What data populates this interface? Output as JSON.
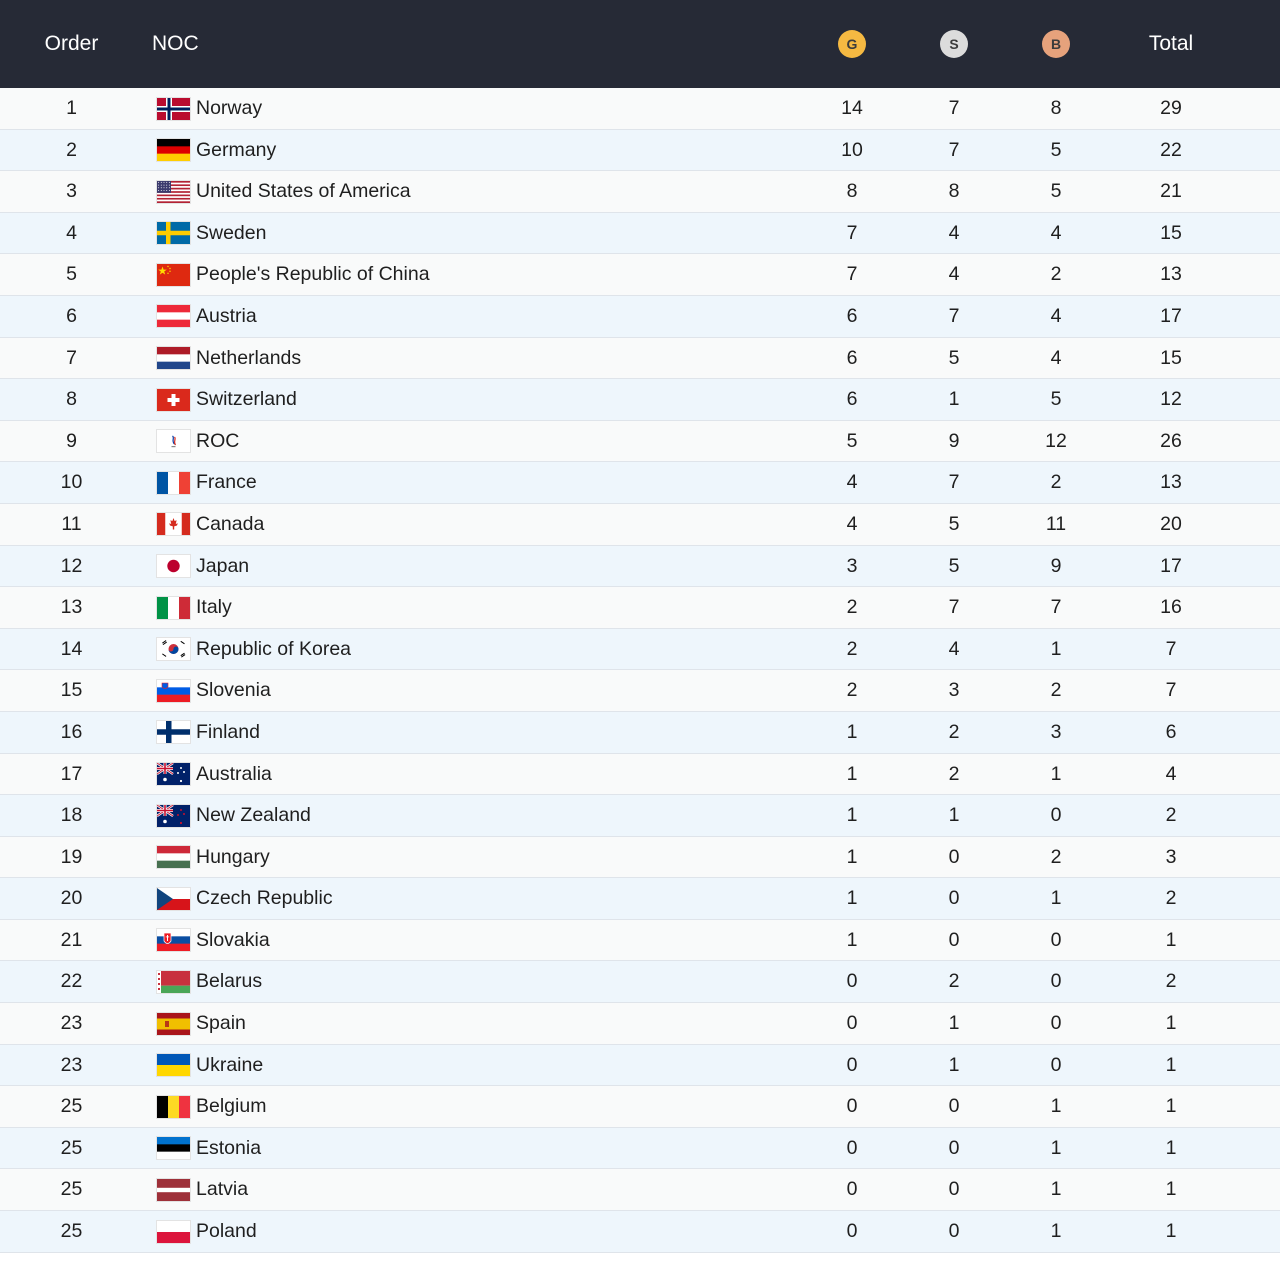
{
  "header": {
    "order": "Order",
    "noc": "NOC",
    "gold": "G",
    "silver": "S",
    "bronze": "B",
    "total": "Total"
  },
  "colors": {
    "header_bg": "#262a36",
    "gold_medal": "#f5b942",
    "silver_medal": "#dcdcdc",
    "bronze_medal": "#e6a27c",
    "row_alt": "#eef6fc"
  },
  "rows": [
    {
      "order": "1",
      "noc": "Norway",
      "flag": "norway",
      "g": "14",
      "s": "7",
      "b": "8",
      "total": "29"
    },
    {
      "order": "2",
      "noc": "Germany",
      "flag": "germany",
      "g": "10",
      "s": "7",
      "b": "5",
      "total": "22"
    },
    {
      "order": "3",
      "noc": "United States of America",
      "flag": "usa",
      "g": "8",
      "s": "8",
      "b": "5",
      "total": "21"
    },
    {
      "order": "4",
      "noc": "Sweden",
      "flag": "sweden",
      "g": "7",
      "s": "4",
      "b": "4",
      "total": "15"
    },
    {
      "order": "5",
      "noc": "People's Republic of China",
      "flag": "china",
      "g": "7",
      "s": "4",
      "b": "2",
      "total": "13"
    },
    {
      "order": "6",
      "noc": "Austria",
      "flag": "austria",
      "g": "6",
      "s": "7",
      "b": "4",
      "total": "17"
    },
    {
      "order": "7",
      "noc": "Netherlands",
      "flag": "netherlands",
      "g": "6",
      "s": "5",
      "b": "4",
      "total": "15"
    },
    {
      "order": "8",
      "noc": "Switzerland",
      "flag": "switzerland",
      "g": "6",
      "s": "1",
      "b": "5",
      "total": "12"
    },
    {
      "order": "9",
      "noc": "ROC",
      "flag": "roc",
      "g": "5",
      "s": "9",
      "b": "12",
      "total": "26"
    },
    {
      "order": "10",
      "noc": "France",
      "flag": "france",
      "g": "4",
      "s": "7",
      "b": "2",
      "total": "13"
    },
    {
      "order": "11",
      "noc": "Canada",
      "flag": "canada",
      "g": "4",
      "s": "5",
      "b": "11",
      "total": "20"
    },
    {
      "order": "12",
      "noc": "Japan",
      "flag": "japan",
      "g": "3",
      "s": "5",
      "b": "9",
      "total": "17"
    },
    {
      "order": "13",
      "noc": "Italy",
      "flag": "italy",
      "g": "2",
      "s": "7",
      "b": "7",
      "total": "16"
    },
    {
      "order": "14",
      "noc": "Republic of Korea",
      "flag": "korea",
      "g": "2",
      "s": "4",
      "b": "1",
      "total": "7"
    },
    {
      "order": "15",
      "noc": "Slovenia",
      "flag": "slovenia",
      "g": "2",
      "s": "3",
      "b": "2",
      "total": "7"
    },
    {
      "order": "16",
      "noc": "Finland",
      "flag": "finland",
      "g": "1",
      "s": "2",
      "b": "3",
      "total": "6"
    },
    {
      "order": "17",
      "noc": "Australia",
      "flag": "australia",
      "g": "1",
      "s": "2",
      "b": "1",
      "total": "4"
    },
    {
      "order": "18",
      "noc": "New Zealand",
      "flag": "newzealand",
      "g": "1",
      "s": "1",
      "b": "0",
      "total": "2"
    },
    {
      "order": "19",
      "noc": "Hungary",
      "flag": "hungary",
      "g": "1",
      "s": "0",
      "b": "2",
      "total": "3"
    },
    {
      "order": "20",
      "noc": "Czech Republic",
      "flag": "czech",
      "g": "1",
      "s": "0",
      "b": "1",
      "total": "2"
    },
    {
      "order": "21",
      "noc": "Slovakia",
      "flag": "slovakia",
      "g": "1",
      "s": "0",
      "b": "0",
      "total": "1"
    },
    {
      "order": "22",
      "noc": "Belarus",
      "flag": "belarus",
      "g": "0",
      "s": "2",
      "b": "0",
      "total": "2"
    },
    {
      "order": "23",
      "noc": "Spain",
      "flag": "spain",
      "g": "0",
      "s": "1",
      "b": "0",
      "total": "1"
    },
    {
      "order": "23",
      "noc": "Ukraine",
      "flag": "ukraine",
      "g": "0",
      "s": "1",
      "b": "0",
      "total": "1"
    },
    {
      "order": "25",
      "noc": "Belgium",
      "flag": "belgium",
      "g": "0",
      "s": "0",
      "b": "1",
      "total": "1"
    },
    {
      "order": "25",
      "noc": "Estonia",
      "flag": "estonia",
      "g": "0",
      "s": "0",
      "b": "1",
      "total": "1"
    },
    {
      "order": "25",
      "noc": "Latvia",
      "flag": "latvia",
      "g": "0",
      "s": "0",
      "b": "1",
      "total": "1"
    },
    {
      "order": "25",
      "noc": "Poland",
      "flag": "poland",
      "g": "0",
      "s": "0",
      "b": "1",
      "total": "1"
    }
  ]
}
